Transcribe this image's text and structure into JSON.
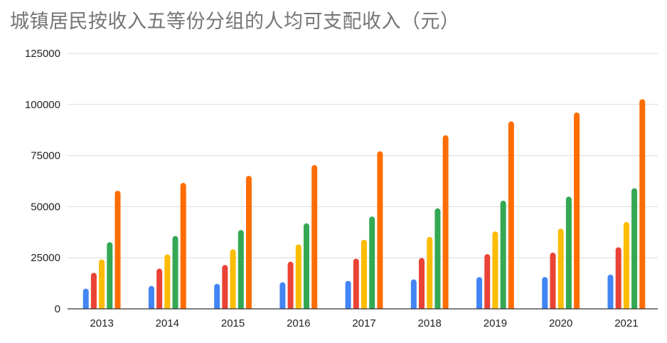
{
  "chart_data": {
    "type": "bar",
    "title": "城镇居民按收入五等份分组的人均可支配收入（元）",
    "xlabel": "",
    "ylabel": "",
    "ylim": [
      0,
      125000
    ],
    "yticks": [
      "0",
      "25000",
      "50000",
      "75000",
      "100000",
      "125000"
    ],
    "ytick_values": [
      0,
      25000,
      50000,
      75000,
      100000,
      125000
    ],
    "grid": true,
    "legend": "none",
    "categories": [
      "2013",
      "2014",
      "2015",
      "2016",
      "2017",
      "2018",
      "2019",
      "2020",
      "2021"
    ],
    "series": [
      {
        "color": "#4285f4",
        "values": [
          9896,
          11219,
          12231,
          13004,
          13723,
          14387,
          15549,
          15598,
          16746
        ]
      },
      {
        "color": "#ea4335",
        "values": [
          17628,
          19651,
          21446,
          23055,
          24550,
          24857,
          26784,
          27501,
          30133
        ]
      },
      {
        "color": "#fbbc04",
        "values": [
          24173,
          26651,
          29105,
          31522,
          33781,
          35196,
          37876,
          39278,
          42498
        ]
      },
      {
        "color": "#34a853",
        "values": [
          32614,
          35631,
          38572,
          41806,
          45163,
          49174,
          52907,
          54910,
          59005
        ]
      },
      {
        "color": "#ff6d01",
        "values": [
          57762,
          61615,
          65082,
          70348,
          77097,
          84907,
          91683,
          96062,
          102596
        ]
      }
    ]
  }
}
